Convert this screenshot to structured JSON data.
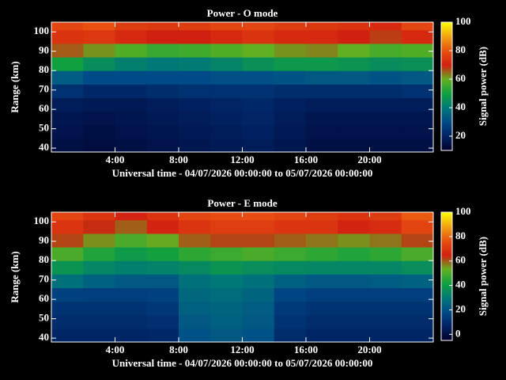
{
  "chart_data": [
    {
      "type": "heatmap",
      "title": "Power - O mode",
      "xlabel": "Universal time - 04/07/2026 00:00:00 to 05/07/2026 00:00:00",
      "ylabel": "Range (km)",
      "colorbar_label": "Signal power (dB)",
      "xbins": [
        0,
        2,
        4,
        6,
        8,
        10,
        12,
        14,
        16,
        18,
        20,
        22,
        24
      ],
      "ybins": [
        38,
        45,
        52,
        59,
        66,
        73,
        80,
        87,
        94,
        101,
        105
      ],
      "values": [
        [
          15,
          14,
          15,
          16,
          17,
          18,
          19,
          17,
          15,
          15,
          15,
          15
        ],
        [
          16,
          15,
          16,
          17,
          18,
          19,
          20,
          18,
          16,
          16,
          16,
          16
        ],
        [
          17,
          16,
          17,
          18,
          19,
          20,
          21,
          19,
          17,
          17,
          17,
          17
        ],
        [
          19,
          18,
          18,
          19,
          20,
          21,
          22,
          20,
          19,
          19,
          19,
          19
        ],
        [
          24,
          22,
          22,
          23,
          24,
          24,
          24,
          23,
          23,
          23,
          23,
          24
        ],
        [
          34,
          30,
          30,
          30,
          30,
          31,
          31,
          32,
          33,
          33,
          32,
          33
        ],
        [
          50,
          45,
          42,
          40,
          41,
          43,
          46,
          48,
          48,
          47,
          45,
          46
        ],
        [
          66,
          62,
          58,
          55,
          56,
          58,
          60,
          62,
          63,
          60,
          57,
          58
        ],
        [
          74,
          75,
          72,
          70,
          70,
          72,
          74,
          72,
          72,
          70,
          68,
          72
        ],
        [
          78,
          80,
          76,
          75,
          76,
          78,
          78,
          76,
          75,
          74,
          72,
          78
        ]
      ],
      "xlim": [
        0,
        24
      ],
      "ylim": [
        38,
        105
      ],
      "xticks": [
        {
          "value": 4,
          "label": "4:00"
        },
        {
          "value": 8,
          "label": "8:00"
        },
        {
          "value": 12,
          "label": "12:00"
        },
        {
          "value": 16,
          "label": "16:00"
        },
        {
          "value": 20,
          "label": "20:00"
        }
      ],
      "yticks": [
        40,
        50,
        60,
        70,
        80,
        90,
        100
      ],
      "clim": [
        10,
        100
      ],
      "cticks": [
        20,
        40,
        60,
        80,
        100
      ],
      "colorscale": [
        "#000028",
        "#002060",
        "#004a88",
        "#007878",
        "#10a040",
        "#60b020",
        "#d02010",
        "#e85010",
        "#f0a010",
        "#ffff00"
      ]
    },
    {
      "type": "heatmap",
      "title": "Power - E mode",
      "xlabel": "Universal time - 04/07/2026 00:00:00 to 05/07/2026 00:00:00",
      "ylabel": "Range (km)",
      "colorbar_label": "Signal power (dB)",
      "xbins": [
        0,
        2,
        4,
        6,
        8,
        10,
        12,
        14,
        16,
        18,
        20,
        22,
        24
      ],
      "ybins": [
        38,
        45,
        52,
        59,
        66,
        73,
        80,
        87,
        94,
        101,
        105
      ],
      "values": [
        [
          8,
          8,
          8,
          9,
          20,
          22,
          20,
          10,
          8,
          8,
          8,
          8
        ],
        [
          10,
          10,
          10,
          11,
          22,
          24,
          22,
          12,
          10,
          10,
          10,
          10
        ],
        [
          12,
          12,
          12,
          13,
          24,
          25,
          23,
          14,
          12,
          12,
          12,
          12
        ],
        [
          16,
          15,
          15,
          16,
          26,
          27,
          25,
          17,
          15,
          15,
          15,
          15
        ],
        [
          28,
          24,
          22,
          22,
          28,
          30,
          28,
          24,
          22,
          22,
          23,
          24
        ],
        [
          38,
          34,
          32,
          33,
          35,
          38,
          36,
          35,
          34,
          34,
          34,
          36
        ],
        [
          50,
          44,
          40,
          42,
          46,
          48,
          50,
          48,
          46,
          44,
          46,
          50
        ],
        [
          62,
          56,
          50,
          54,
          60,
          62,
          62,
          60,
          58,
          56,
          58,
          62
        ],
        [
          70,
          64,
          60,
          66,
          70,
          72,
          72,
          70,
          70,
          66,
          68,
          74
        ],
        [
          74,
          70,
          66,
          70,
          74,
          76,
          76,
          74,
          72,
          70,
          72,
          78
        ]
      ],
      "xlim": [
        0,
        24
      ],
      "ylim": [
        38,
        105
      ],
      "xticks": [
        {
          "value": 4,
          "label": "4:00"
        },
        {
          "value": 8,
          "label": "8:00"
        },
        {
          "value": 12,
          "label": "12:00"
        },
        {
          "value": 16,
          "label": "16:00"
        },
        {
          "value": 20,
          "label": "20:00"
        }
      ],
      "yticks": [
        40,
        50,
        60,
        70,
        80,
        90,
        100
      ],
      "clim": [
        -5,
        100
      ],
      "cticks": [
        0,
        20,
        40,
        60,
        80,
        100
      ],
      "colorscale": [
        "#000028",
        "#002060",
        "#004a88",
        "#007878",
        "#10a040",
        "#60b020",
        "#d02010",
        "#e85010",
        "#f0a010",
        "#ffff00"
      ]
    }
  ]
}
